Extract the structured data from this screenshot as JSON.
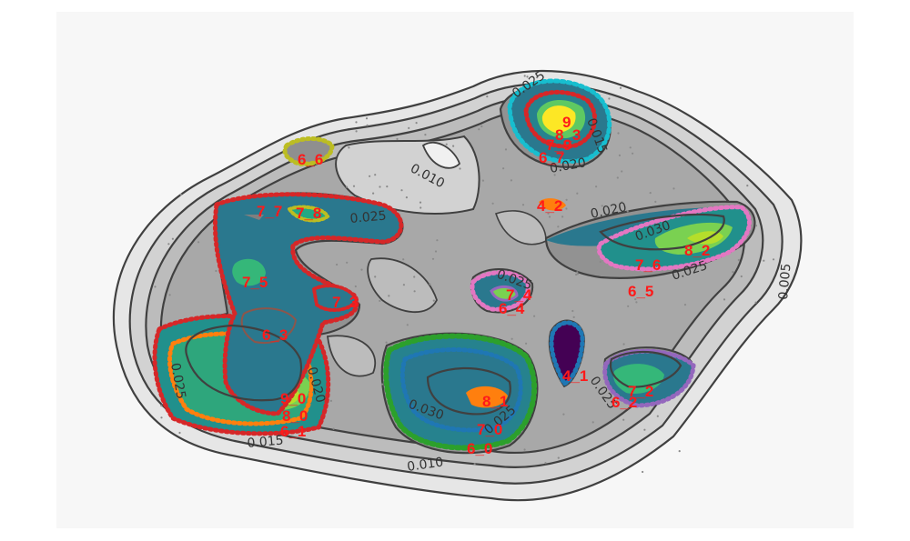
{
  "chart_data": {
    "type": "contour",
    "title": "",
    "xlabel": "",
    "ylabel": "",
    "grid": false,
    "contour_levels": [
      "0.005",
      "0.010",
      "0.015",
      "0.020",
      "0.025",
      "0.030"
    ],
    "colors": {
      "panel_background": "#f7f7f7",
      "density_fill_levels": [
        "#e6e6e6",
        "#d2d2d2",
        "#bcbcbc",
        "#a8a8a8",
        "#929292",
        "#808080"
      ],
      "contour_stroke": "#404040",
      "cluster_label": "#ff1a1a"
    },
    "clusters": [
      {
        "label": "9",
        "color": "#fde725"
      },
      {
        "label": "8_3",
        "color": "#5ec962"
      },
      {
        "label": "7_9",
        "color": "#d62728"
      },
      {
        "label": "6_7",
        "color": "#17becf"
      },
      {
        "label": "6_6",
        "color": "#bcbd22"
      },
      {
        "label": "4_2",
        "color": "#ff7f0e"
      },
      {
        "label": "7_7",
        "color": "#7f7f7f"
      },
      {
        "label": "7_8",
        "color": "#bcbd22"
      },
      {
        "label": "7_5",
        "color": "#21918c"
      },
      {
        "label": "7_3",
        "color": "#d62728"
      },
      {
        "label": "6_3",
        "color": "#8c564b"
      },
      {
        "label": "7_4",
        "color": "#9467bd"
      },
      {
        "label": "6_4",
        "color": "#e377c2"
      },
      {
        "label": "8_2",
        "color": "#b5de2b"
      },
      {
        "label": "7_6",
        "color": "#5ec962"
      },
      {
        "label": "6_5",
        "color": "#e377c2"
      },
      {
        "label": "9_0",
        "color": "#fde725"
      },
      {
        "label": "8_0",
        "color": "#5ec962"
      },
      {
        "label": "6_1",
        "color": "#d62728"
      },
      {
        "label": "8_1",
        "color": "#ff7f0e"
      },
      {
        "label": "7_0",
        "color": "#2ca02c"
      },
      {
        "label": "6_0",
        "color": "#2ca02c"
      },
      {
        "label": "4_1",
        "color": "#440154"
      },
      {
        "label": "7_2",
        "color": "#9467bd"
      },
      {
        "label": "6_2",
        "color": "#9467bd"
      }
    ]
  }
}
